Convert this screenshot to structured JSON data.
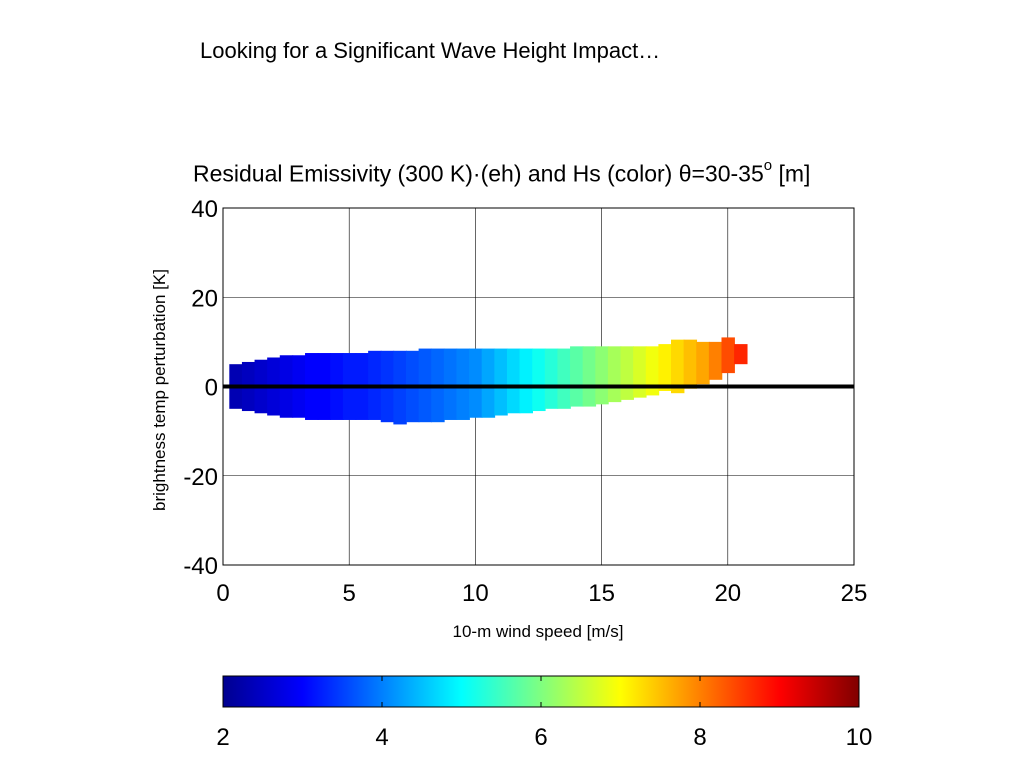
{
  "slide": {
    "title": "Looking for a Significant Wave Height Impact…"
  },
  "chart_data": {
    "type": "heatmap",
    "title_main": "Residual Emissivity (300 K)·(eh) and Hs (color) θ=30-35",
    "title_sup": "o",
    "title_unit": " [m]",
    "xlabel": "10-m wind speed [m/s]",
    "ylabel": "brightness temp perturbation [K]",
    "xlim": [
      0,
      25
    ],
    "ylim": [
      -40,
      40
    ],
    "xticks": [
      "0",
      "5",
      "10",
      "15",
      "20",
      "25"
    ],
    "yticks": [
      "40",
      "20",
      "0",
      "-20",
      "-40"
    ],
    "grid": true,
    "zero_line": true,
    "colormap": "jet",
    "colorbar": {
      "range": [
        2,
        10
      ],
      "ticks": [
        "2",
        "4",
        "6",
        "8",
        "10"
      ],
      "placement": "bottom"
    },
    "data_columns": [
      {
        "x": 0.5,
        "ymin": -5,
        "ymax": 5,
        "hs": 2.4
      },
      {
        "x": 1.0,
        "ymin": -5.5,
        "ymax": 5.5,
        "hs": 2.5
      },
      {
        "x": 1.5,
        "ymin": -6,
        "ymax": 6,
        "hs": 2.6
      },
      {
        "x": 2.0,
        "ymin": -6.5,
        "ymax": 6.5,
        "hs": 2.7
      },
      {
        "x": 2.5,
        "ymin": -7,
        "ymax": 7,
        "hs": 2.8
      },
      {
        "x": 3.0,
        "ymin": -7,
        "ymax": 7,
        "hs": 2.9
      },
      {
        "x": 3.5,
        "ymin": -7.5,
        "ymax": 7.5,
        "hs": 3.0
      },
      {
        "x": 4.0,
        "ymin": -7.5,
        "ymax": 7.5,
        "hs": 3.0
      },
      {
        "x": 4.5,
        "ymin": -7.5,
        "ymax": 7.5,
        "hs": 3.1
      },
      {
        "x": 5.0,
        "ymin": -7.5,
        "ymax": 7.5,
        "hs": 3.2
      },
      {
        "x": 5.5,
        "ymin": -7.5,
        "ymax": 7.5,
        "hs": 3.2
      },
      {
        "x": 6.0,
        "ymin": -7.5,
        "ymax": 8,
        "hs": 3.3
      },
      {
        "x": 6.5,
        "ymin": -8,
        "ymax": 8,
        "hs": 3.4
      },
      {
        "x": 7.0,
        "ymin": -8.5,
        "ymax": 8,
        "hs": 3.5
      },
      {
        "x": 7.5,
        "ymin": -8,
        "ymax": 8,
        "hs": 3.6
      },
      {
        "x": 8.0,
        "ymin": -8,
        "ymax": 8.5,
        "hs": 3.7
      },
      {
        "x": 8.5,
        "ymin": -8,
        "ymax": 8.5,
        "hs": 3.8
      },
      {
        "x": 9.0,
        "ymin": -7.5,
        "ymax": 8.5,
        "hs": 3.9
      },
      {
        "x": 9.5,
        "ymin": -7.5,
        "ymax": 8.5,
        "hs": 4.0
      },
      {
        "x": 10.0,
        "ymin": -7,
        "ymax": 8.5,
        "hs": 4.1
      },
      {
        "x": 10.5,
        "ymin": -7,
        "ymax": 8.5,
        "hs": 4.3
      },
      {
        "x": 11.0,
        "ymin": -6.5,
        "ymax": 8.5,
        "hs": 4.5
      },
      {
        "x": 11.5,
        "ymin": -6,
        "ymax": 8.5,
        "hs": 4.7
      },
      {
        "x": 12.0,
        "ymin": -6,
        "ymax": 8.5,
        "hs": 4.9
      },
      {
        "x": 12.5,
        "ymin": -5.5,
        "ymax": 8.5,
        "hs": 5.1
      },
      {
        "x": 13.0,
        "ymin": -5,
        "ymax": 8.5,
        "hs": 5.3
      },
      {
        "x": 13.5,
        "ymin": -5,
        "ymax": 8.5,
        "hs": 5.5
      },
      {
        "x": 14.0,
        "ymin": -4.5,
        "ymax": 9,
        "hs": 5.7
      },
      {
        "x": 14.5,
        "ymin": -4.5,
        "ymax": 9,
        "hs": 5.9
      },
      {
        "x": 15.0,
        "ymin": -4,
        "ymax": 9,
        "hs": 6.1
      },
      {
        "x": 15.5,
        "ymin": -3.5,
        "ymax": 9,
        "hs": 6.3
      },
      {
        "x": 16.0,
        "ymin": -3,
        "ymax": 9,
        "hs": 6.5
      },
      {
        "x": 16.5,
        "ymin": -2.5,
        "ymax": 9,
        "hs": 6.7
      },
      {
        "x": 17.0,
        "ymin": -2,
        "ymax": 9,
        "hs": 6.9
      },
      {
        "x": 17.5,
        "ymin": -1,
        "ymax": 9.5,
        "hs": 7.1
      },
      {
        "x": 18.0,
        "ymin": -1.5,
        "ymax": 10.5,
        "hs": 7.3
      },
      {
        "x": 18.5,
        "ymin": -0.5,
        "ymax": 10.5,
        "hs": 7.5
      },
      {
        "x": 19.0,
        "ymin": 0.5,
        "ymax": 10,
        "hs": 7.7
      },
      {
        "x": 19.5,
        "ymin": 1.5,
        "ymax": 10,
        "hs": 8.0
      },
      {
        "x": 20.0,
        "ymin": 3,
        "ymax": 11,
        "hs": 8.4
      },
      {
        "x": 20.5,
        "ymin": 5,
        "ymax": 9.5,
        "hs": 8.7
      }
    ]
  }
}
